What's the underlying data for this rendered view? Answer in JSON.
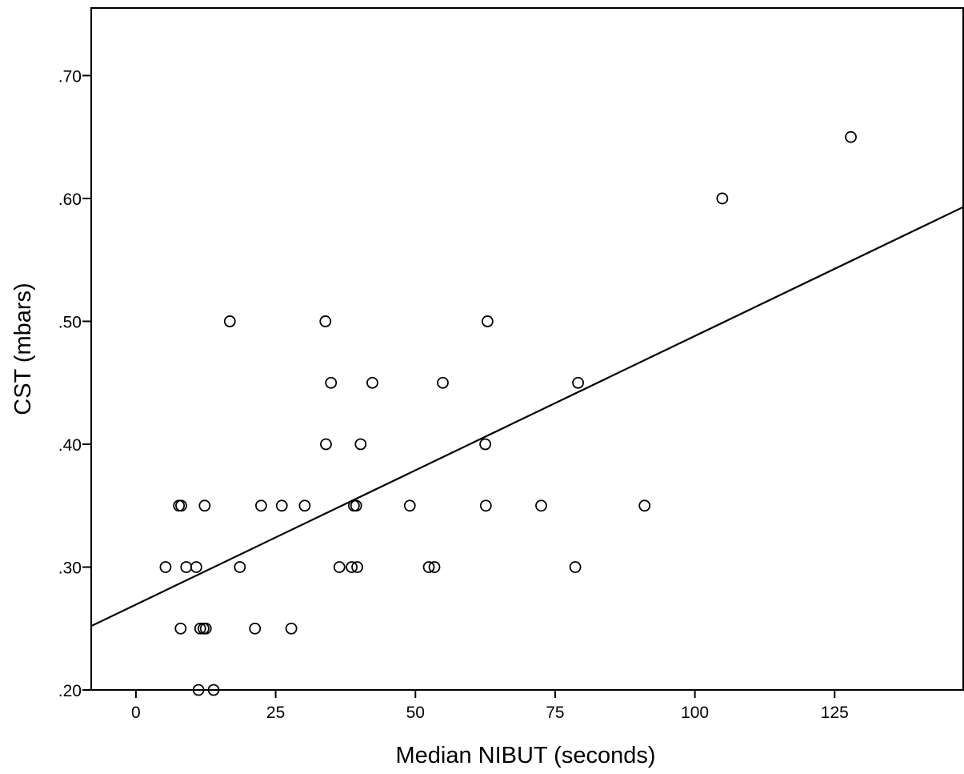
{
  "chart_data": {
    "type": "scatter",
    "title": "",
    "xlabel": "Median NIBUT (seconds)",
    "ylabel": "CST (mbars)",
    "xlim": [
      -8,
      148
    ],
    "ylim": [
      0.2,
      0.755
    ],
    "x_ticks": [
      0,
      25,
      50,
      75,
      100,
      125
    ],
    "x_tick_labels": [
      "0",
      "25",
      "50",
      "75",
      "100",
      "125"
    ],
    "y_ticks": [
      0.2,
      0.3,
      0.4,
      0.5,
      0.6,
      0.7
    ],
    "y_tick_labels": [
      ".20",
      ".30",
      ".40",
      ".50",
      ".60",
      ".70"
    ],
    "grid": false,
    "legend": "none",
    "colors": {
      "marker": "#000000",
      "line": "#000000",
      "background": "#ffffff"
    },
    "points": [
      {
        "x": 5.3,
        "y": 0.3
      },
      {
        "x": 7.7,
        "y": 0.35
      },
      {
        "x": 8.1,
        "y": 0.35
      },
      {
        "x": 8.0,
        "y": 0.25
      },
      {
        "x": 9.0,
        "y": 0.3
      },
      {
        "x": 10.8,
        "y": 0.3
      },
      {
        "x": 11.2,
        "y": 0.2
      },
      {
        "x": 11.5,
        "y": 0.25
      },
      {
        "x": 12.1,
        "y": 0.25
      },
      {
        "x": 12.3,
        "y": 0.35
      },
      {
        "x": 12.5,
        "y": 0.25
      },
      {
        "x": 13.9,
        "y": 0.2
      },
      {
        "x": 16.8,
        "y": 0.5
      },
      {
        "x": 18.6,
        "y": 0.3
      },
      {
        "x": 21.3,
        "y": 0.25
      },
      {
        "x": 22.4,
        "y": 0.35
      },
      {
        "x": 26.1,
        "y": 0.35
      },
      {
        "x": 27.8,
        "y": 0.25
      },
      {
        "x": 30.2,
        "y": 0.35
      },
      {
        "x": 33.9,
        "y": 0.5
      },
      {
        "x": 34.0,
        "y": 0.4
      },
      {
        "x": 34.9,
        "y": 0.45
      },
      {
        "x": 36.4,
        "y": 0.3
      },
      {
        "x": 38.6,
        "y": 0.3
      },
      {
        "x": 39.0,
        "y": 0.35
      },
      {
        "x": 39.4,
        "y": 0.35
      },
      {
        "x": 39.6,
        "y": 0.3
      },
      {
        "x": 40.2,
        "y": 0.4
      },
      {
        "x": 42.3,
        "y": 0.45
      },
      {
        "x": 49.0,
        "y": 0.35
      },
      {
        "x": 52.4,
        "y": 0.3
      },
      {
        "x": 53.4,
        "y": 0.3
      },
      {
        "x": 54.9,
        "y": 0.45
      },
      {
        "x": 62.5,
        "y": 0.4
      },
      {
        "x": 62.6,
        "y": 0.35
      },
      {
        "x": 62.9,
        "y": 0.5
      },
      {
        "x": 72.5,
        "y": 0.35
      },
      {
        "x": 78.6,
        "y": 0.3
      },
      {
        "x": 79.1,
        "y": 0.45
      },
      {
        "x": 91.0,
        "y": 0.35
      },
      {
        "x": 104.9,
        "y": 0.6
      },
      {
        "x": 127.9,
        "y": 0.65
      }
    ],
    "fit_line": {
      "x": [
        -8,
        148
      ],
      "y": [
        0.252,
        0.593
      ]
    }
  }
}
